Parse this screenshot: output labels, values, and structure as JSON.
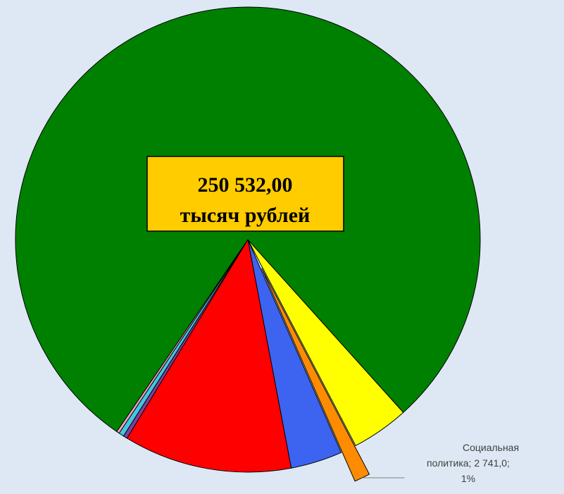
{
  "chart_data": {
    "type": "pie",
    "annotation": [
      "250 532,00",
      "тысяч рублей"
    ],
    "categories": [
      null,
      "Социальная политика",
      null,
      null,
      null,
      null,
      null,
      null
    ],
    "values": [
      10000,
      2741,
      9000,
      29300,
      700,
      900,
      500,
      197391
    ],
    "value_labels": [
      null,
      "2 741,0",
      null,
      null,
      null,
      null,
      null,
      null
    ],
    "percent_labels": [
      null,
      "1%",
      null,
      null,
      null,
      null,
      null,
      null
    ],
    "label_separator": ";",
    "colors": [
      "#ffff00",
      "#ff8c00",
      "#3c64f0",
      "#ff0000",
      "#8040a0",
      "#40c8e0",
      "#f0a0c0",
      "#008000"
    ],
    "exploded": [
      false,
      true,
      false,
      false,
      false,
      false,
      false,
      false
    ]
  }
}
